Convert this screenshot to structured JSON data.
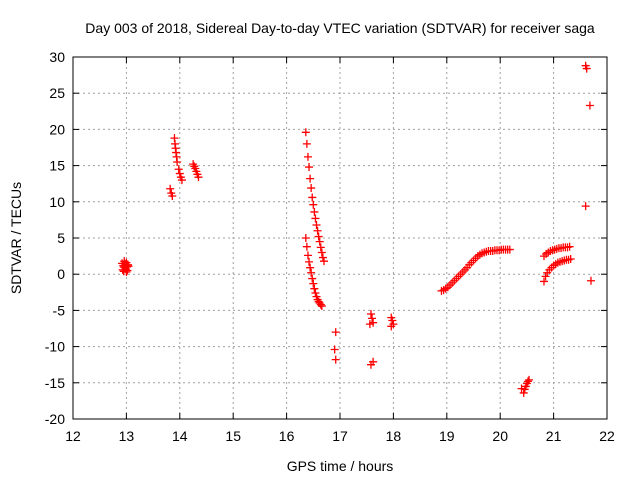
{
  "chart_data": {
    "type": "scatter",
    "title": "Day 003 of 2018, Sidereal Day-to-day VTEC variation (SDTVAR) for receiver saga",
    "xlabel": "GPS time / hours",
    "ylabel": "SDTVAR / TECUs",
    "xlim": [
      12,
      22
    ],
    "ylim": [
      -20,
      30
    ],
    "xticks": [
      12,
      13,
      14,
      15,
      16,
      17,
      18,
      19,
      20,
      21,
      22
    ],
    "yticks": [
      -20,
      -15,
      -10,
      -5,
      0,
      5,
      10,
      15,
      20,
      25,
      30
    ],
    "grid": true,
    "marker": "+",
    "color": "#ff0000",
    "series": [
      {
        "name": "SDTVAR",
        "points": [
          [
            12.92,
            1.5
          ],
          [
            12.93,
            0.6
          ],
          [
            12.94,
            1.2
          ],
          [
            12.95,
            0.4
          ],
          [
            12.96,
            1.8
          ],
          [
            12.97,
            0.9
          ],
          [
            12.98,
            1.4
          ],
          [
            12.99,
            0.7
          ],
          [
            13.0,
            1.6
          ],
          [
            13.01,
            1.0
          ],
          [
            13.02,
            0.5
          ],
          [
            13.03,
            1.3
          ],
          [
            13.04,
            1.1
          ],
          [
            12.95,
            1.0
          ],
          [
            13.0,
            0.3
          ],
          [
            13.82,
            11.8
          ],
          [
            13.84,
            11.2
          ],
          [
            13.86,
            10.8
          ],
          [
            13.9,
            18.8
          ],
          [
            13.91,
            18.0
          ],
          [
            13.92,
            17.4
          ],
          [
            13.93,
            16.8
          ],
          [
            13.94,
            16.2
          ],
          [
            13.95,
            15.5
          ],
          [
            13.98,
            14.5
          ],
          [
            14.0,
            13.9
          ],
          [
            14.02,
            13.4
          ],
          [
            14.04,
            13.0
          ],
          [
            14.25,
            15.2
          ],
          [
            14.27,
            14.9
          ],
          [
            14.29,
            14.6
          ],
          [
            14.31,
            14.2
          ],
          [
            14.33,
            13.8
          ],
          [
            14.35,
            13.4
          ],
          [
            16.36,
            19.6
          ],
          [
            16.38,
            18.0
          ],
          [
            16.4,
            16.2
          ],
          [
            16.42,
            14.8
          ],
          [
            16.44,
            13.2
          ],
          [
            16.46,
            11.9
          ],
          [
            16.48,
            10.6
          ],
          [
            16.5,
            9.6
          ],
          [
            16.52,
            8.6
          ],
          [
            16.54,
            7.7
          ],
          [
            16.56,
            6.8
          ],
          [
            16.58,
            6.0
          ],
          [
            16.6,
            5.2
          ],
          [
            16.62,
            4.5
          ],
          [
            16.64,
            3.7
          ],
          [
            16.66,
            3.0
          ],
          [
            16.68,
            2.3
          ],
          [
            16.7,
            1.8
          ],
          [
            16.36,
            5.0
          ],
          [
            16.38,
            3.8
          ],
          [
            16.4,
            2.6
          ],
          [
            16.42,
            1.7
          ],
          [
            16.44,
            0.9
          ],
          [
            16.46,
            0.2
          ],
          [
            16.48,
            -0.6
          ],
          [
            16.5,
            -1.3
          ],
          [
            16.52,
            -2.0
          ],
          [
            16.54,
            -2.6
          ],
          [
            16.56,
            -3.1
          ],
          [
            16.58,
            -3.5
          ],
          [
            16.6,
            -3.8
          ],
          [
            16.62,
            -4.0
          ],
          [
            16.64,
            -4.2
          ],
          [
            16.66,
            -4.4
          ],
          [
            16.92,
            -8.0
          ],
          [
            16.9,
            -10.4
          ],
          [
            16.92,
            -11.8
          ],
          [
            17.58,
            -5.5
          ],
          [
            17.6,
            -6.1
          ],
          [
            17.62,
            -6.7
          ],
          [
            17.56,
            -6.9
          ],
          [
            17.62,
            -12.1
          ],
          [
            17.58,
            -12.5
          ],
          [
            17.96,
            -6.0
          ],
          [
            17.98,
            -6.4
          ],
          [
            18.0,
            -6.9
          ],
          [
            17.96,
            -7.2
          ],
          [
            18.9,
            -2.3
          ],
          [
            18.94,
            -2.2
          ],
          [
            18.98,
            -2.0
          ],
          [
            19.02,
            -1.8
          ],
          [
            19.06,
            -1.5
          ],
          [
            19.1,
            -1.2
          ],
          [
            19.14,
            -0.9
          ],
          [
            19.18,
            -0.6
          ],
          [
            19.22,
            -0.3
          ],
          [
            19.26,
            0.0
          ],
          [
            19.3,
            0.3
          ],
          [
            19.34,
            0.6
          ],
          [
            19.38,
            0.9
          ],
          [
            19.42,
            1.3
          ],
          [
            19.46,
            1.6
          ],
          [
            19.5,
            1.9
          ],
          [
            19.54,
            2.2
          ],
          [
            19.58,
            2.5
          ],
          [
            19.62,
            2.7
          ],
          [
            19.66,
            2.9
          ],
          [
            19.7,
            3.0
          ],
          [
            19.74,
            3.1
          ],
          [
            19.78,
            3.2
          ],
          [
            19.82,
            3.2
          ],
          [
            19.86,
            3.2
          ],
          [
            19.9,
            3.3
          ],
          [
            19.94,
            3.3
          ],
          [
            19.98,
            3.3
          ],
          [
            20.02,
            3.4
          ],
          [
            20.06,
            3.4
          ],
          [
            20.1,
            3.4
          ],
          [
            20.14,
            3.4
          ],
          [
            20.18,
            3.4
          ],
          [
            20.4,
            -15.8
          ],
          [
            20.44,
            -16.4
          ],
          [
            20.46,
            -15.9
          ],
          [
            20.48,
            -15.5
          ],
          [
            20.5,
            -15.1
          ],
          [
            20.52,
            -14.8
          ],
          [
            20.54,
            -14.6
          ],
          [
            20.82,
            2.5
          ],
          [
            20.86,
            2.8
          ],
          [
            20.9,
            3.0
          ],
          [
            20.94,
            3.2
          ],
          [
            20.98,
            3.3
          ],
          [
            21.02,
            3.4
          ],
          [
            21.06,
            3.5
          ],
          [
            21.1,
            3.6
          ],
          [
            21.14,
            3.6
          ],
          [
            21.18,
            3.7
          ],
          [
            21.22,
            3.7
          ],
          [
            21.26,
            3.7
          ],
          [
            21.3,
            3.8
          ],
          [
            20.82,
            -1.0
          ],
          [
            20.85,
            -0.3
          ],
          [
            20.88,
            0.2
          ],
          [
            20.92,
            0.6
          ],
          [
            20.96,
            0.9
          ],
          [
            21.0,
            1.2
          ],
          [
            21.04,
            1.4
          ],
          [
            21.08,
            1.6
          ],
          [
            21.12,
            1.7
          ],
          [
            21.16,
            1.8
          ],
          [
            21.2,
            1.9
          ],
          [
            21.24,
            2.0
          ],
          [
            21.28,
            2.0
          ],
          [
            21.32,
            2.1
          ],
          [
            21.6,
            28.8
          ],
          [
            21.62,
            28.4
          ],
          [
            21.68,
            23.3
          ],
          [
            21.6,
            9.4
          ],
          [
            21.7,
            -0.9
          ]
        ]
      }
    ]
  }
}
